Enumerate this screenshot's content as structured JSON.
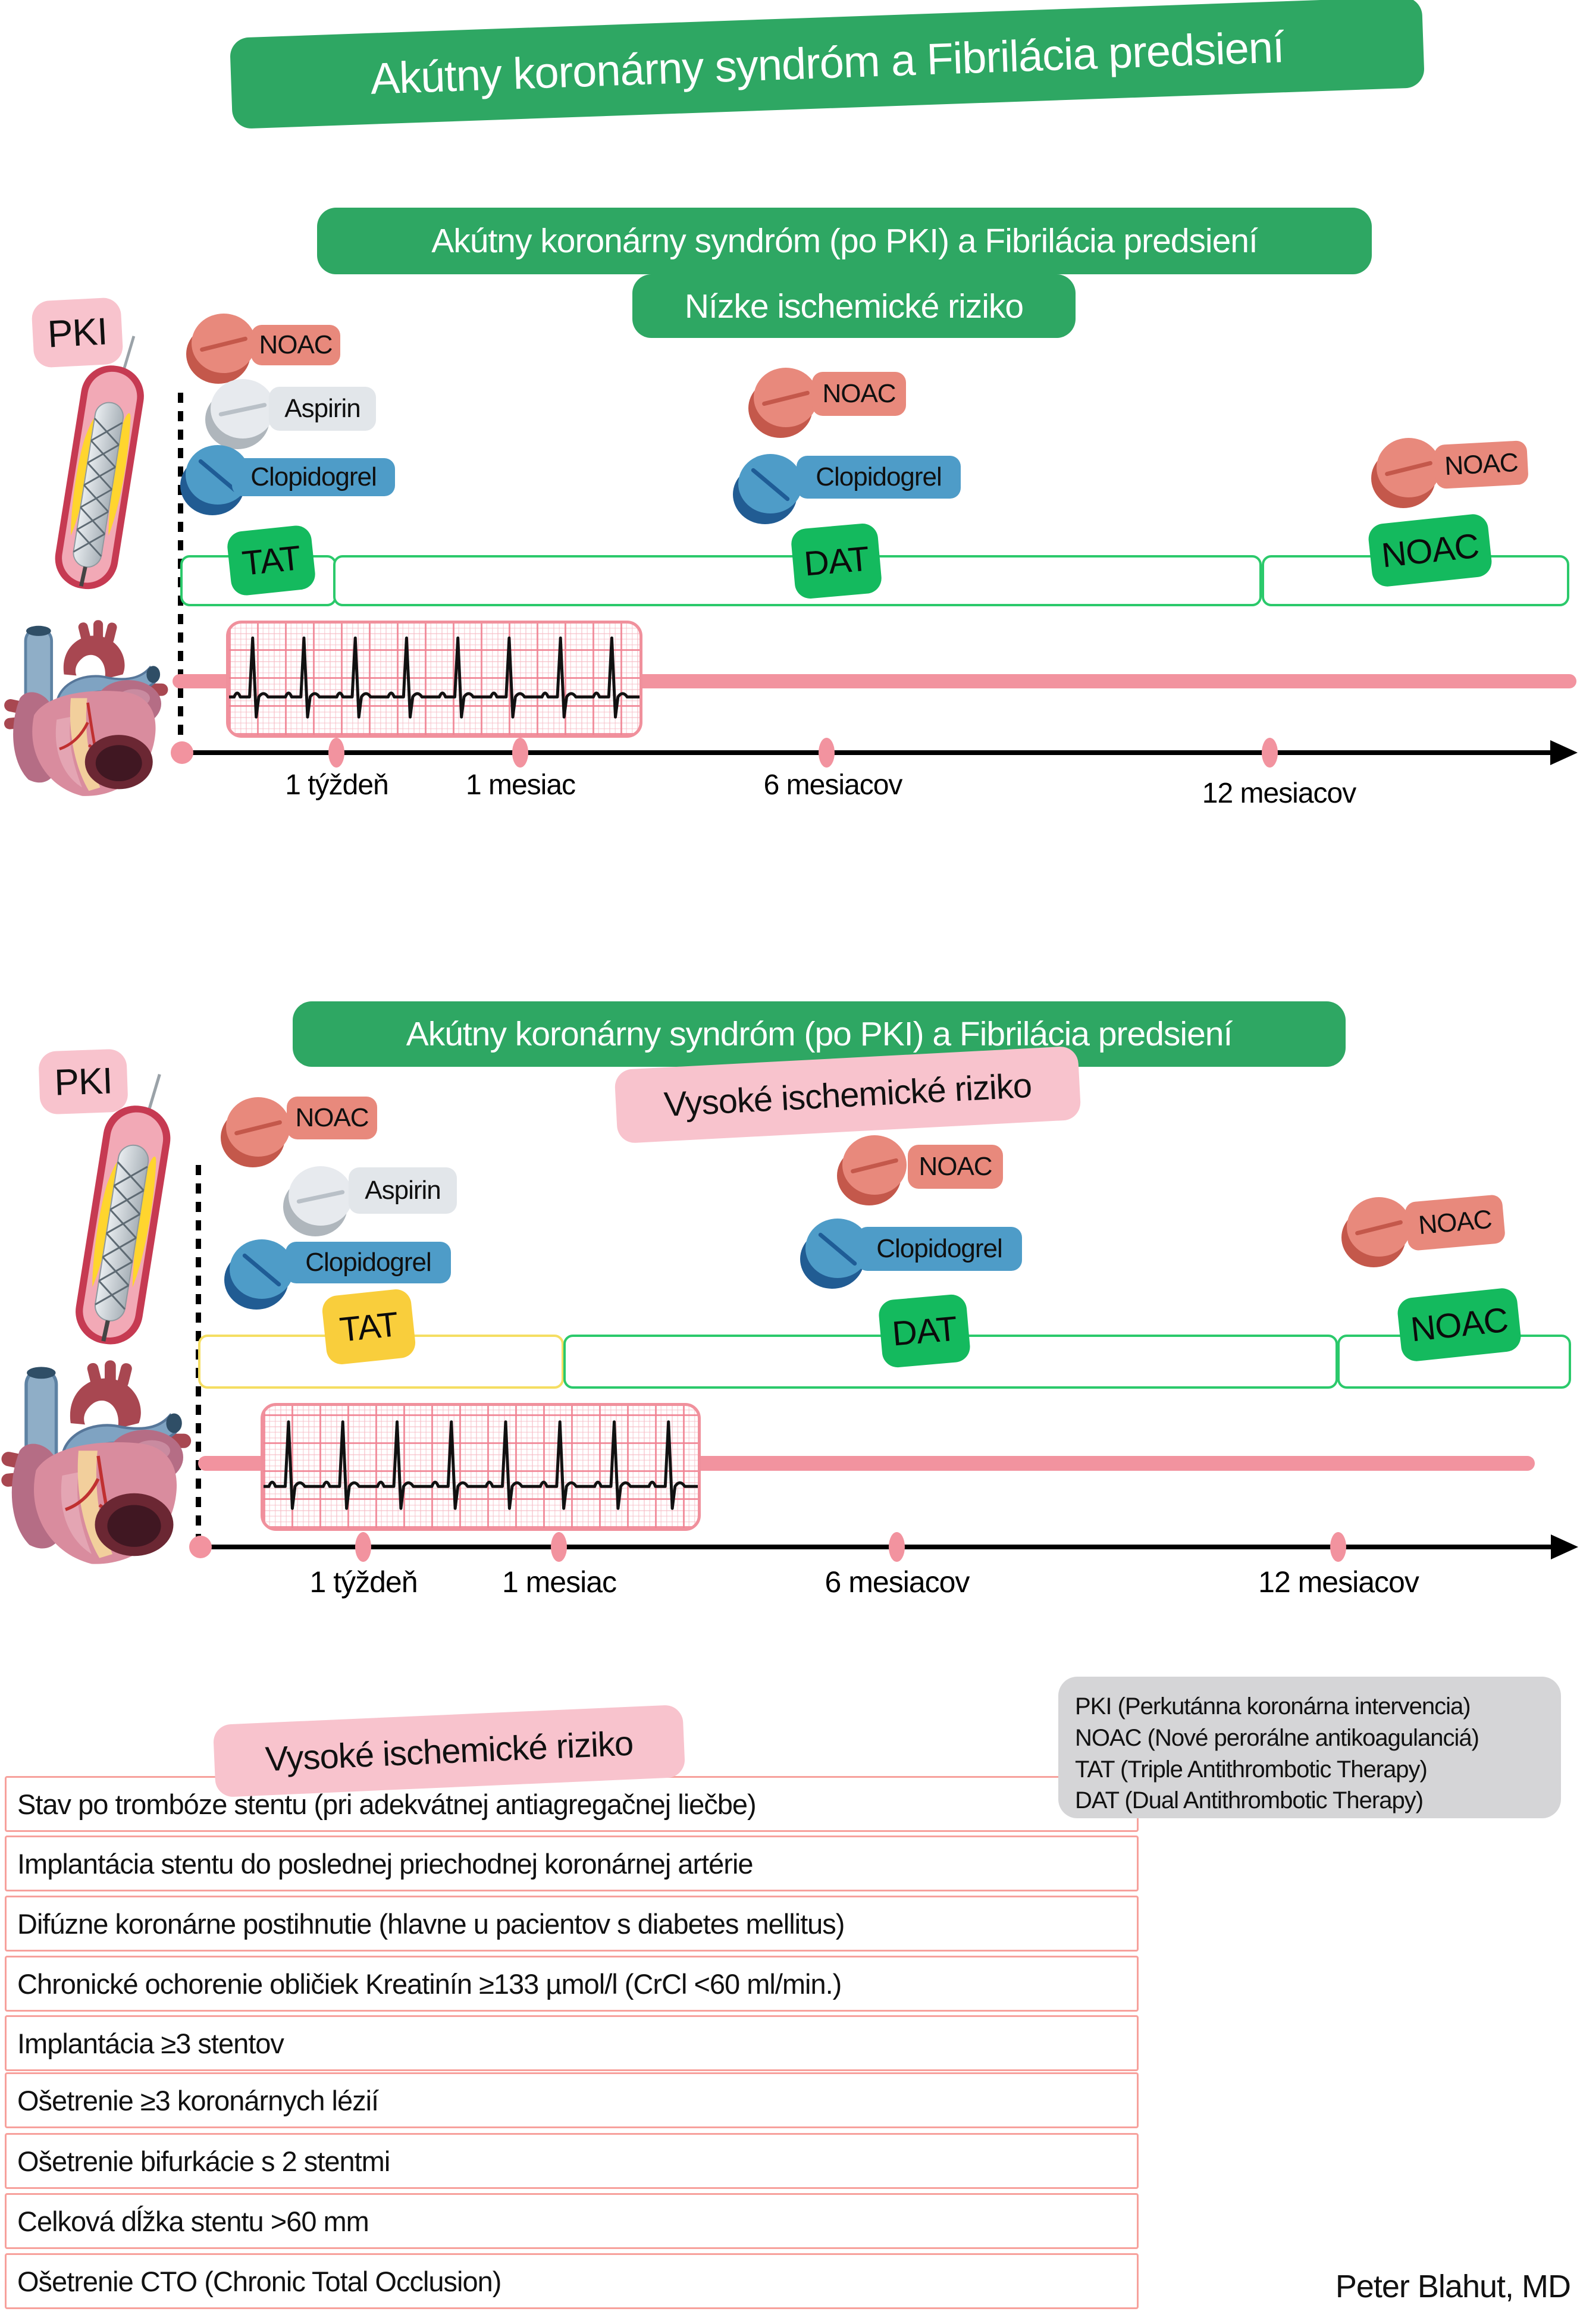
{
  "title": "Akútny koronárny syndróm a Fibrilácia predsiení",
  "diagram1": {
    "header": "Akútny koronárny syndróm (po PKI) a Fibrilácia predsiení",
    "risk_level": "Nízke ischemické riziko",
    "pki_label": "PKI",
    "start_pills": [
      "NOAC",
      "Aspirin",
      "Clopidogrel"
    ],
    "mid_pills": [
      "NOAC",
      "Clopidogrel"
    ],
    "late_pill": "NOAC",
    "phases": [
      "TAT",
      "DAT",
      "NOAC"
    ],
    "timeline": [
      "1 týždeň",
      "1 mesiac",
      "6 mesiacov",
      "12 mesiacov"
    ]
  },
  "diagram2": {
    "header": "Akútny koronárny syndróm (po PKI) a Fibrilácia predsiení",
    "risk_level": "Vysoké ischemické riziko",
    "pki_label": "PKI",
    "start_pills": [
      "NOAC",
      "Aspirin",
      "Clopidogrel"
    ],
    "mid_pills": [
      "NOAC",
      "Clopidogrel"
    ],
    "late_pill": "NOAC",
    "phases": [
      "TAT",
      "DAT",
      "NOAC"
    ],
    "timeline": [
      "1 týždeň",
      "1 mesiac",
      "6 mesiacov",
      "12 mesiacov"
    ]
  },
  "bottom": {
    "risk_title": "Vysoké ischemické riziko",
    "risk_rows": [
      "Stav po trombóze stentu (pri adekvátnej antiagregačnej liečbe)",
      "Implantácia stentu do poslednej priechodnej koronárnej artérie",
      "Difúzne koronárne postihnutie (hlavne u pacientov s diabetes mellitus)",
      "Chronické ochorenie obličiek Kreatinín ≥133 µmol/l (CrCl <60 ml/min.)",
      "Implantácia ≥3 stentov",
      "Ošetrenie ≥3 koronárnych lézií",
      "Ošetrenie bifurkácie s 2 stentmi",
      "Celková dĺžka stentu >60 mm",
      "Ošetrenie CTO (Chronic Total Occlusion)"
    ],
    "legend_lines": [
      "PKI (Perkutánna koronárna intervencia)",
      "NOAC (Nové perorálne antikoagulanciá)",
      "TAT (Triple Antithrombotic Therapy)",
      "DAT (Dual Antithrombotic Therapy)"
    ],
    "author": "Peter Blahut, MD"
  },
  "colors": {
    "green_header": "#2EA763",
    "green_tag": "#14BA5E",
    "bar_border_green": "#2BC96B",
    "bar_border_yellow": "#F5DE62",
    "yellow_tag": "#F9CE3C",
    "pink_label": "#F8C3CD",
    "salmon_pill": "#E8897C",
    "aspirin_pill": "#E2E6EA",
    "clopidogrel_pill": "#4E9CC8",
    "rhythm_band": "#F2939F",
    "legend_gray": "#D5D5D7",
    "risk_row_border": "#F7A19C"
  }
}
